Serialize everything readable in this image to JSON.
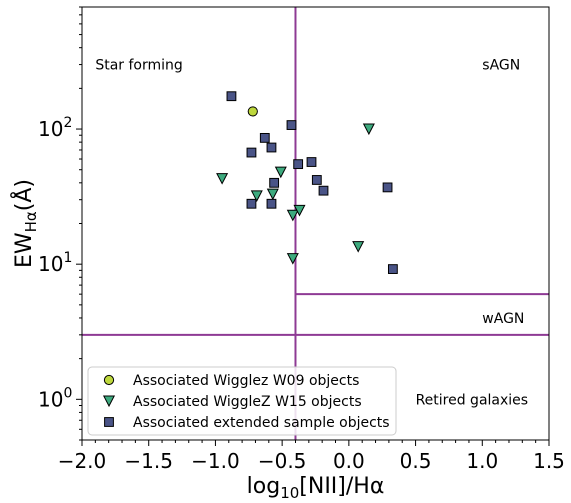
{
  "chart_data": {
    "type": "scatter",
    "title": "",
    "xlabel_main": "log",
    "xlabel_sub": "10",
    "xlabel_rest": "[NII]/Hα",
    "ylabel_main": "EW",
    "ylabel_sub": "Hα",
    "ylabel_rest": "(Å)",
    "xlim": [
      -2.0,
      1.5
    ],
    "ylim": [
      0.5,
      800
    ],
    "yscale": "log",
    "grid": false,
    "x_ticks": [
      {
        "value": -2.0,
        "label": "−2.0"
      },
      {
        "value": -1.5,
        "label": "−1.5"
      },
      {
        "value": -1.0,
        "label": "−1.0"
      },
      {
        "value": -0.5,
        "label": "−0.5"
      },
      {
        "value": 0.0,
        "label": "0.0"
      },
      {
        "value": 0.5,
        "label": "0.5"
      },
      {
        "value": 1.0,
        "label": "1.0"
      },
      {
        "value": 1.5,
        "label": "1.5"
      }
    ],
    "y_ticks": [
      {
        "value": 1,
        "base": "10",
        "exp": "0"
      },
      {
        "value": 10,
        "base": "10",
        "exp": "1"
      },
      {
        "value": 100,
        "base": "10",
        "exp": "2"
      }
    ],
    "region_labels": [
      {
        "text": "Star forming",
        "x": -1.9,
        "y": 300
      },
      {
        "text": "sAGN",
        "x": 1.0,
        "y": 300
      },
      {
        "text": "wAGN",
        "x": 1.0,
        "y": 4
      },
      {
        "text": "Retired galaxies",
        "x": 0.5,
        "y": 1.0
      }
    ],
    "dividers": [
      {
        "x1": -0.4,
        "y1": 0.5,
        "x2": -0.4,
        "y2": 800
      },
      {
        "x1": -2.0,
        "y1": 3,
        "x2": 1.5,
        "y2": 3
      },
      {
        "x1": -0.4,
        "y1": 6,
        "x2": 1.5,
        "y2": 6
      }
    ],
    "divider_color": "#8e3a94",
    "legend_position": "lower-left",
    "series": [
      {
        "name": "Associated Wigglez W09 objects",
        "marker": "circle",
        "color": "#bdd73c",
        "points": [
          [
            -0.72,
            135
          ]
        ]
      },
      {
        "name": "Associated WiggleZ W15 objects",
        "marker": "triangle-down",
        "color": "#3daa7e",
        "points": [
          [
            -0.95,
            43
          ],
          [
            -0.69,
            32
          ],
          [
            -0.57,
            33
          ],
          [
            -0.51,
            48
          ],
          [
            -0.42,
            23
          ],
          [
            -0.37,
            25
          ],
          [
            -0.42,
            11
          ],
          [
            0.07,
            13.5
          ],
          [
            0.15,
            100
          ]
        ]
      },
      {
        "name": "Associated extended sample objects",
        "marker": "square",
        "color": "#4a5487",
        "points": [
          [
            -0.88,
            175
          ],
          [
            -0.73,
            67
          ],
          [
            -0.63,
            86
          ],
          [
            -0.58,
            73
          ],
          [
            -0.56,
            40
          ],
          [
            -0.73,
            28
          ],
          [
            -0.58,
            28
          ],
          [
            -0.43,
            107
          ],
          [
            -0.38,
            55
          ],
          [
            -0.28,
            57
          ],
          [
            -0.24,
            42
          ],
          [
            -0.19,
            35
          ],
          [
            0.29,
            37
          ],
          [
            0.33,
            9.2
          ]
        ]
      }
    ]
  }
}
